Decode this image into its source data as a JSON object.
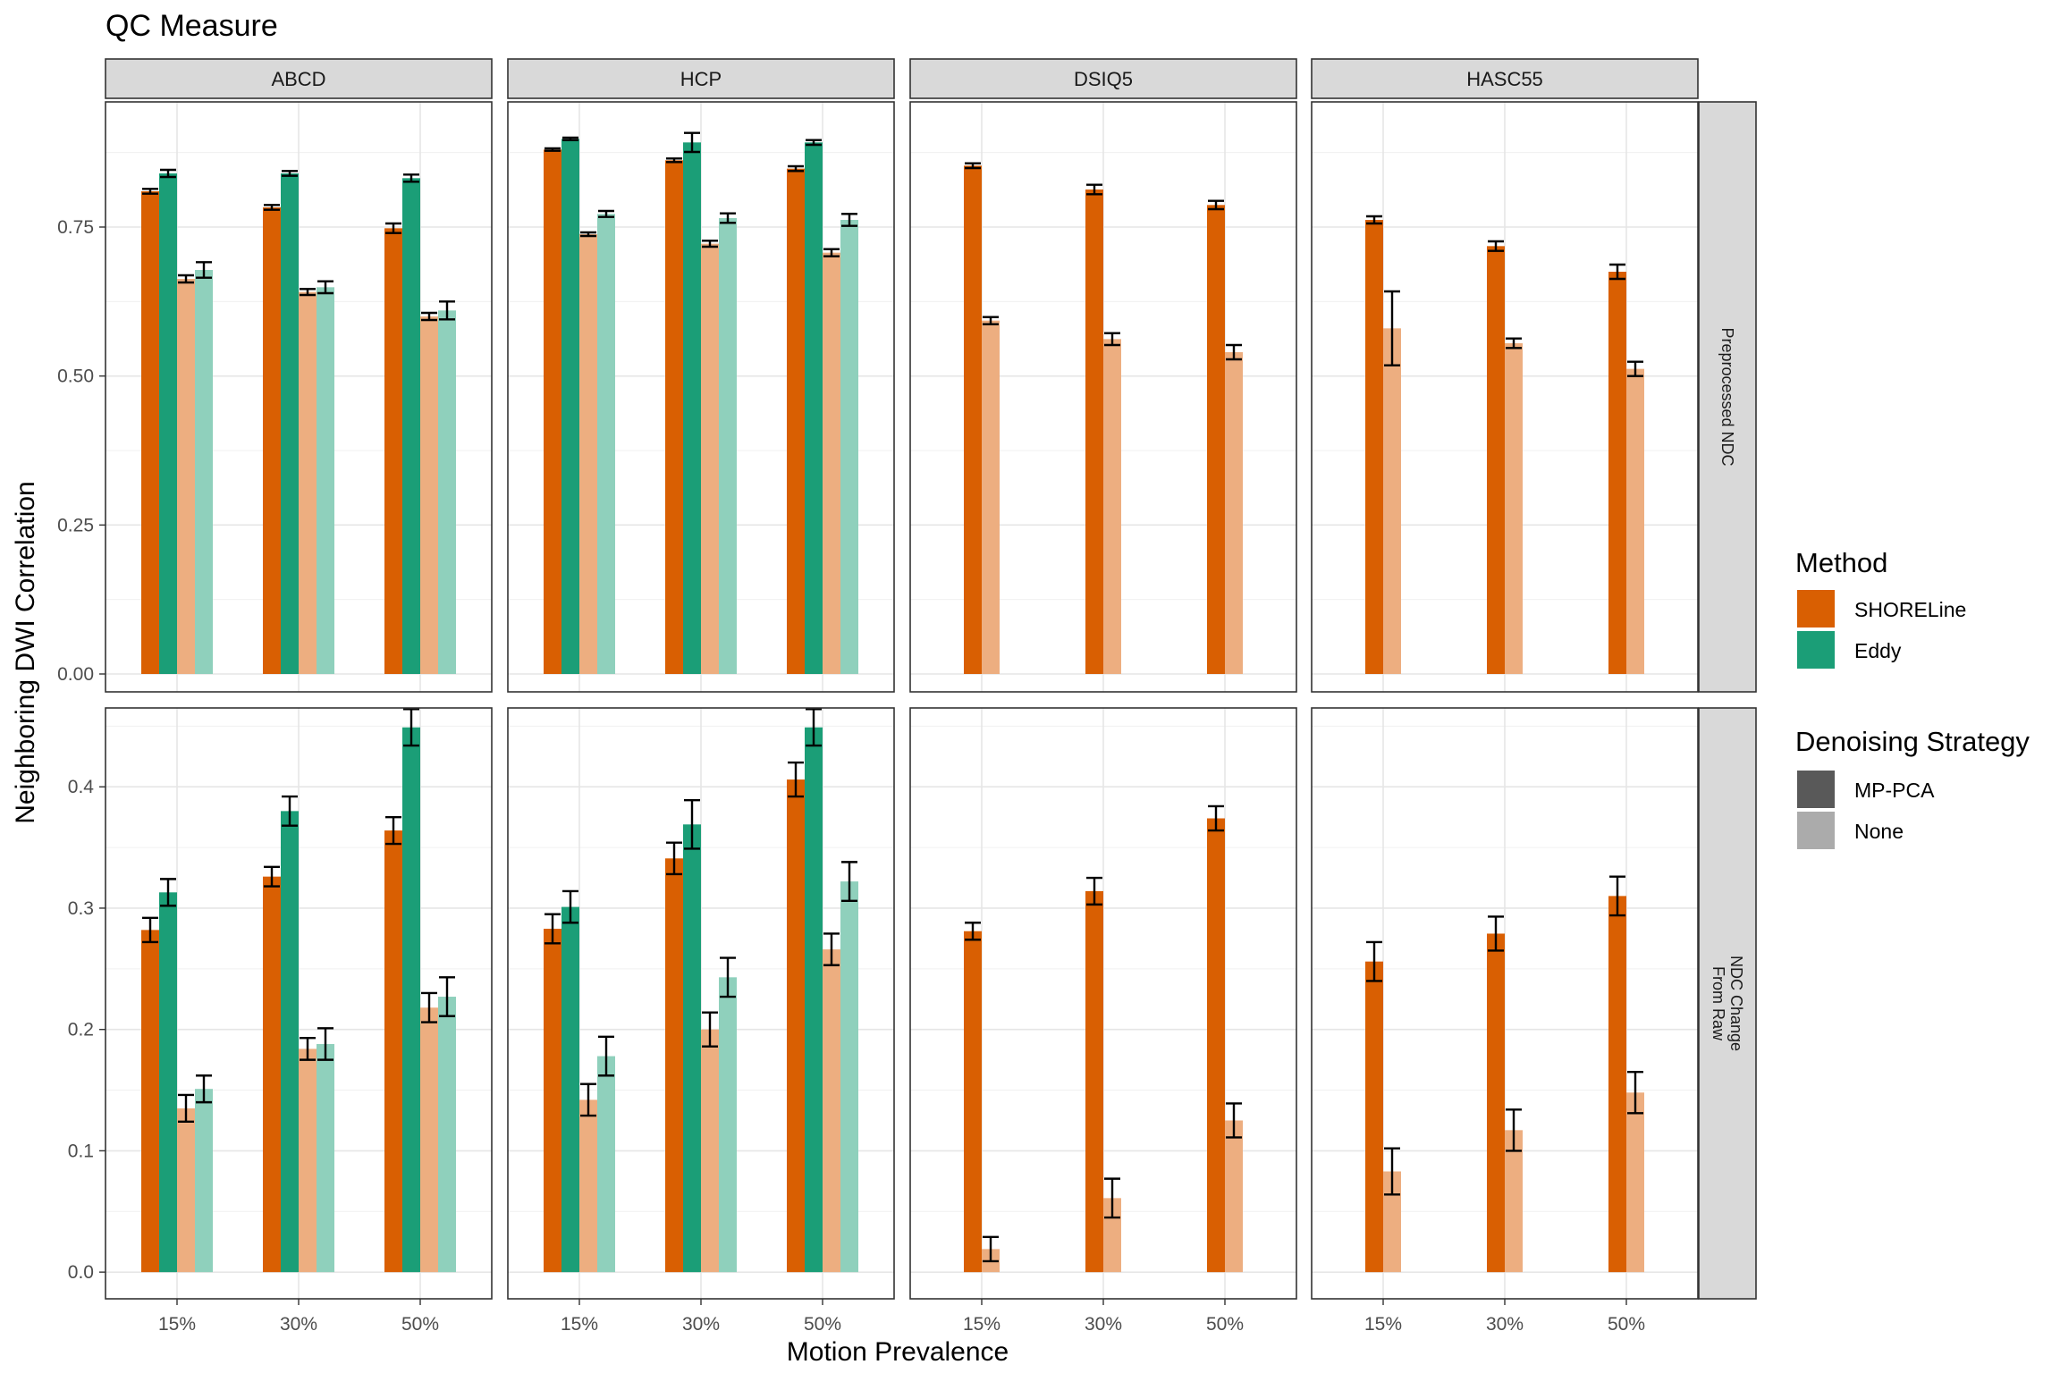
{
  "chart_data": {
    "type": "bar",
    "title": "QC Measure",
    "xlabel": "Motion Prevalence",
    "ylabel": "Neighboring DWI Correlation",
    "categories": [
      "15%",
      "30%",
      "50%"
    ],
    "columns": [
      "ABCD",
      "HCP",
      "DSIQ5",
      "HASC55"
    ],
    "rows": [
      {
        "label": "Preprocessed NDC",
        "ylim": [
          -0.03,
          0.96
        ],
        "ticks": [
          0,
          0.25,
          0.5,
          0.75
        ],
        "tick_labels": [
          "0.00",
          "0.25",
          "0.50",
          "0.75"
        ]
      },
      {
        "label_lines": [
          "NDC Change",
          "From Raw"
        ],
        "ylim": [
          -0.022,
          0.465
        ],
        "ticks": [
          0,
          0.1,
          0.2,
          0.3,
          0.4
        ],
        "tick_labels": [
          "0.0",
          "0.1",
          "0.2",
          "0.3",
          "0.4"
        ]
      }
    ],
    "legend": {
      "placement": "right",
      "method": {
        "title": "Method",
        "items": [
          {
            "label": "SHORELine",
            "color": "#D95F02"
          },
          {
            "label": "Eddy",
            "color": "#1B9E77"
          }
        ]
      },
      "denoising": {
        "title": "Denoising Strategy",
        "items": [
          {
            "label": "MP-PCA",
            "color": "#595959"
          },
          {
            "label": "None",
            "color": "#ABABAB"
          }
        ]
      }
    },
    "colors": {
      "shoreline_mppca": "#D95F02",
      "eddy_mppca": "#1B9E77",
      "shoreline_none": "#EDAE80",
      "eddy_none": "#8FD0BC"
    },
    "bar_order": [
      "shoreline_mppca",
      "eddy_mppca",
      "shoreline_none",
      "eddy_none"
    ],
    "panels": [
      [
        {
          "values": {
            "shoreline_mppca": [
              0.81,
              0.783,
              0.748
            ],
            "eddy_mppca": [
              0.84,
              0.84,
              0.832
            ],
            "shoreline_none": [
              0.663,
              0.641,
              0.6
            ],
            "eddy_none": [
              0.678,
              0.649,
              0.61
            ]
          },
          "errors": {
            "shoreline_mppca": [
              0.004,
              0.004,
              0.008
            ],
            "eddy_mppca": [
              0.006,
              0.004,
              0.006
            ],
            "shoreline_none": [
              0.006,
              0.005,
              0.006
            ],
            "eddy_none": [
              0.013,
              0.01,
              0.015
            ]
          }
        },
        {
          "values": {
            "shoreline_mppca": [
              0.88,
              0.862,
              0.848
            ],
            "eddy_mppca": [
              0.898,
              0.892,
              0.892
            ],
            "shoreline_none": [
              0.738,
              0.722,
              0.707
            ],
            "eddy_none": [
              0.772,
              0.765,
              0.762
            ]
          },
          "errors": {
            "shoreline_mppca": [
              0.002,
              0.003,
              0.004
            ],
            "eddy_mppca": [
              0.002,
              0.016,
              0.004
            ],
            "shoreline_none": [
              0.003,
              0.005,
              0.006
            ],
            "eddy_none": [
              0.005,
              0.008,
              0.01
            ]
          }
        },
        {
          "values": {
            "shoreline_mppca": [
              0.853,
              0.813,
              0.787
            ],
            "shoreline_none": [
              0.593,
              0.562,
              0.54
            ]
          },
          "errors": {
            "shoreline_mppca": [
              0.004,
              0.008,
              0.007
            ],
            "shoreline_none": [
              0.006,
              0.01,
              0.012
            ]
          }
        },
        {
          "values": {
            "shoreline_mppca": [
              0.762,
              0.718,
              0.675
            ],
            "shoreline_none": [
              0.58,
              0.555,
              0.512
            ]
          },
          "errors": {
            "shoreline_mppca": [
              0.006,
              0.008,
              0.012
            ],
            "shoreline_none": [
              0.062,
              0.008,
              0.012
            ]
          }
        }
      ],
      [
        {
          "values": {
            "shoreline_mppca": [
              0.282,
              0.326,
              0.364
            ],
            "eddy_mppca": [
              0.313,
              0.38,
              0.449
            ],
            "shoreline_none": [
              0.135,
              0.184,
              0.218
            ],
            "eddy_none": [
              0.151,
              0.188,
              0.227
            ]
          },
          "errors": {
            "shoreline_mppca": [
              0.01,
              0.008,
              0.011
            ],
            "eddy_mppca": [
              0.011,
              0.012,
              0.015
            ],
            "shoreline_none": [
              0.011,
              0.009,
              0.012
            ],
            "eddy_none": [
              0.011,
              0.013,
              0.016
            ]
          }
        },
        {
          "values": {
            "shoreline_mppca": [
              0.283,
              0.341,
              0.406
            ],
            "eddy_mppca": [
              0.301,
              0.369,
              0.449
            ],
            "shoreline_none": [
              0.142,
              0.2,
              0.266
            ],
            "eddy_none": [
              0.178,
              0.243,
              0.322
            ]
          },
          "errors": {
            "shoreline_mppca": [
              0.012,
              0.013,
              0.014
            ],
            "eddy_mppca": [
              0.013,
              0.02,
              0.015
            ],
            "shoreline_none": [
              0.013,
              0.014,
              0.013
            ],
            "eddy_none": [
              0.016,
              0.016,
              0.016
            ]
          }
        },
        {
          "values": {
            "shoreline_mppca": [
              0.281,
              0.314,
              0.374
            ],
            "shoreline_none": [
              0.019,
              0.061,
              0.125
            ]
          },
          "errors": {
            "shoreline_mppca": [
              0.007,
              0.011,
              0.01
            ],
            "shoreline_none": [
              0.01,
              0.016,
              0.014
            ]
          }
        },
        {
          "values": {
            "shoreline_mppca": [
              0.256,
              0.279,
              0.31
            ],
            "shoreline_none": [
              0.083,
              0.117,
              0.148
            ]
          },
          "errors": {
            "shoreline_mppca": [
              0.016,
              0.014,
              0.016
            ],
            "shoreline_none": [
              0.019,
              0.017,
              0.017
            ]
          }
        }
      ]
    ]
  }
}
